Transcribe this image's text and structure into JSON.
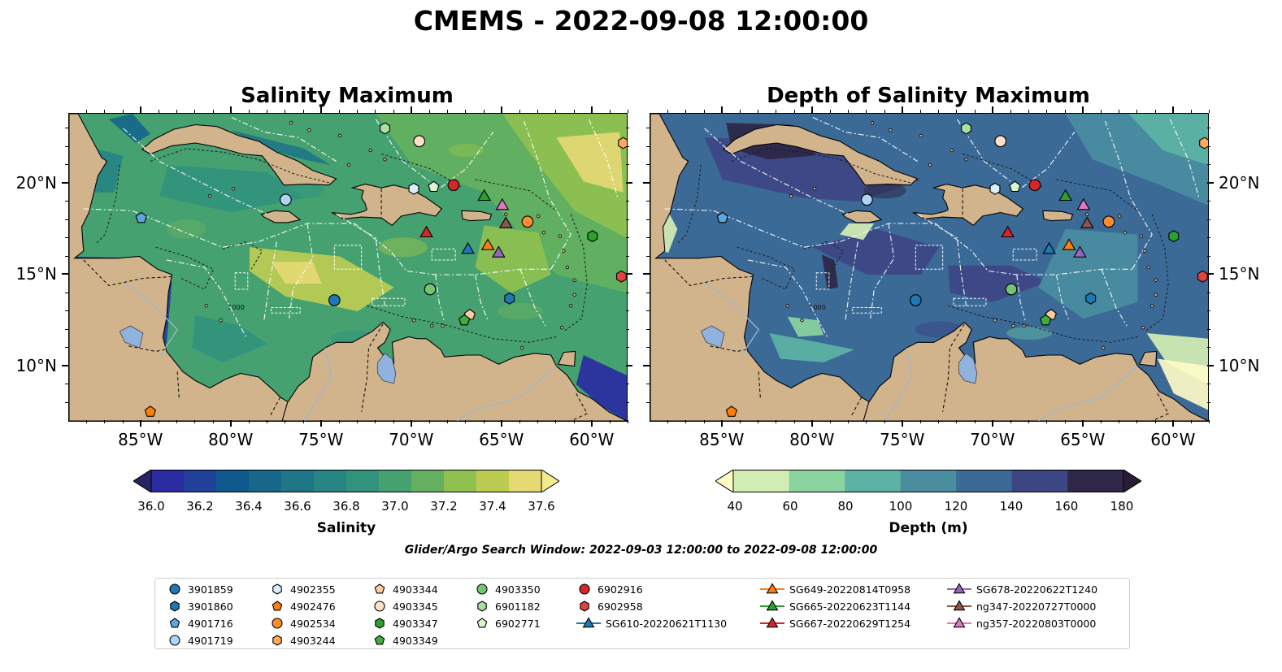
{
  "title": "CMEMS - 2022-09-08 12:00:00",
  "panels": [
    {
      "id": "salinity",
      "title": "Salinity Maximum",
      "colorbar": {
        "label": "Salinity",
        "ticks": [
          "36.0",
          "36.2",
          "36.4",
          "36.6",
          "36.8",
          "37.0",
          "37.2",
          "37.4",
          "37.6"
        ],
        "colors": [
          "#262462",
          "#2a2ba1",
          "#20409a",
          "#11588e",
          "#16678a",
          "#1f7686",
          "#268483",
          "#32937d",
          "#46a171",
          "#64b060",
          "#8fc050",
          "#bccc53",
          "#e5d974",
          "#f2ea8f"
        ]
      }
    },
    {
      "id": "depth",
      "title": "Depth of Salinity Maximum",
      "colorbar": {
        "label": "Depth (m)",
        "ticks": [
          "40",
          "60",
          "80",
          "100",
          "120",
          "140",
          "160",
          "180"
        ],
        "colors": [
          "#fdfbc6",
          "#d3eeb3",
          "#8ad4a0",
          "#5cb3a3",
          "#4a8d9f",
          "#3b6a97",
          "#3d4684",
          "#2e2747",
          "#281e33"
        ]
      }
    }
  ],
  "lon_ticks": [
    "85°W",
    "80°W",
    "75°W",
    "70°W",
    "65°W",
    "60°W"
  ],
  "lat_ticks": [
    "20°N",
    "15°N",
    "10°N"
  ],
  "map_labels": {
    "isobath": "1000"
  },
  "search_window": "Glider/Argo Search Window: 2022-09-03 12:00:00 to 2022-09-08 12:00:00",
  "legend": [
    {
      "label": "3901859",
      "marker": "circle",
      "color": "#1f77b4"
    },
    {
      "label": "3901860",
      "marker": "hexagon",
      "color": "#1f77b4"
    },
    {
      "label": "4901716",
      "marker": "pentagon",
      "color": "#5ea6df"
    },
    {
      "label": "4901719",
      "marker": "circle",
      "color": "#aed4f4"
    },
    {
      "label": "4902355",
      "marker": "hexagon",
      "color": "#dbeeff"
    },
    {
      "label": "4902476",
      "marker": "pentagon",
      "color": "#ff7f0e"
    },
    {
      "label": "4902534",
      "marker": "circle",
      "color": "#ff8c2e"
    },
    {
      "label": "4903244",
      "marker": "hexagon",
      "color": "#ffaa5a"
    },
    {
      "label": "4903344",
      "marker": "pentagon",
      "color": "#ffcc9f"
    },
    {
      "label": "4903345",
      "marker": "circle",
      "color": "#ffe1c6"
    },
    {
      "label": "4903347",
      "marker": "hexagon",
      "color": "#2ca02c"
    },
    {
      "label": "4903349",
      "marker": "pentagon",
      "color": "#3fae3f"
    },
    {
      "label": "4903350",
      "marker": "circle",
      "color": "#74c476"
    },
    {
      "label": "6901182",
      "marker": "hexagon",
      "color": "#a8e0a0"
    },
    {
      "label": "6902771",
      "marker": "pentagon",
      "color": "#d7f5cf"
    },
    {
      "label": "6902916",
      "marker": "circle",
      "color": "#d62728"
    },
    {
      "label": "6902958",
      "marker": "hexagon",
      "color": "#e0443e"
    },
    {
      "label": "SG610-20220621T1130",
      "marker": "triangle-line",
      "color": "#1f77b4"
    },
    {
      "label": "SG649-20220814T0958",
      "marker": "triangle-line",
      "color": "#ff7f0e"
    },
    {
      "label": "SG665-20220623T1144",
      "marker": "triangle-line",
      "color": "#2ca02c"
    },
    {
      "label": "SG667-20220629T1254",
      "marker": "triangle-line",
      "color": "#d62728"
    },
    {
      "label": "SG678-20220622T1240",
      "marker": "triangle-line",
      "color": "#9467bd"
    },
    {
      "label": "ng347-20220727T0000",
      "marker": "triangle-line",
      "color": "#8c564b"
    },
    {
      "label": "ng357-20220803T0000",
      "marker": "triangle-line",
      "color": "#e377c2"
    }
  ],
  "observations": [
    {
      "id": "3901859",
      "lon": -74.3,
      "lat": 13.6
    },
    {
      "id": "3901860",
      "lon": -64.6,
      "lat": 13.7
    },
    {
      "id": "4901716",
      "lon": -85.0,
      "lat": 18.1
    },
    {
      "id": "4901719",
      "lon": -77.0,
      "lat": 19.1
    },
    {
      "id": "4902355",
      "lon": -69.9,
      "lat": 19.7
    },
    {
      "id": "4902476",
      "lon": -84.5,
      "lat": 7.5
    },
    {
      "id": "4902534",
      "lon": -63.6,
      "lat": 17.9
    },
    {
      "id": "4903244",
      "lon": -58.3,
      "lat": 22.2
    },
    {
      "id": "4903344",
      "lon": -66.8,
      "lat": 12.8
    },
    {
      "id": "4903345",
      "lon": -69.6,
      "lat": 22.3
    },
    {
      "id": "4903347",
      "lon": -60.0,
      "lat": 17.1
    },
    {
      "id": "4903349",
      "lon": -67.1,
      "lat": 12.5
    },
    {
      "id": "4903350",
      "lon": -69.0,
      "lat": 14.2
    },
    {
      "id": "6901182",
      "lon": -71.5,
      "lat": 23.0
    },
    {
      "id": "6902771",
      "lon": -68.8,
      "lat": 19.8
    },
    {
      "id": "6902916",
      "lon": -67.7,
      "lat": 19.9
    },
    {
      "id": "6902958",
      "lon": -58.4,
      "lat": 14.9
    },
    {
      "id": "SG610-20220621T1130",
      "lon": -66.9,
      "lat": 16.4
    },
    {
      "id": "SG649-20220814T0958",
      "lon": -65.8,
      "lat": 16.6
    },
    {
      "id": "SG665-20220623T1144",
      "lon": -66.0,
      "lat": 19.3
    },
    {
      "id": "SG667-20220629T1254",
      "lon": -69.2,
      "lat": 17.3
    },
    {
      "id": "SG678-20220622T1240",
      "lon": -65.2,
      "lat": 16.2
    },
    {
      "id": "ng347-20220727T0000",
      "lon": -64.8,
      "lat": 17.8
    },
    {
      "id": "ng357-20220803T0000",
      "lon": -65.0,
      "lat": 18.8
    }
  ]
}
